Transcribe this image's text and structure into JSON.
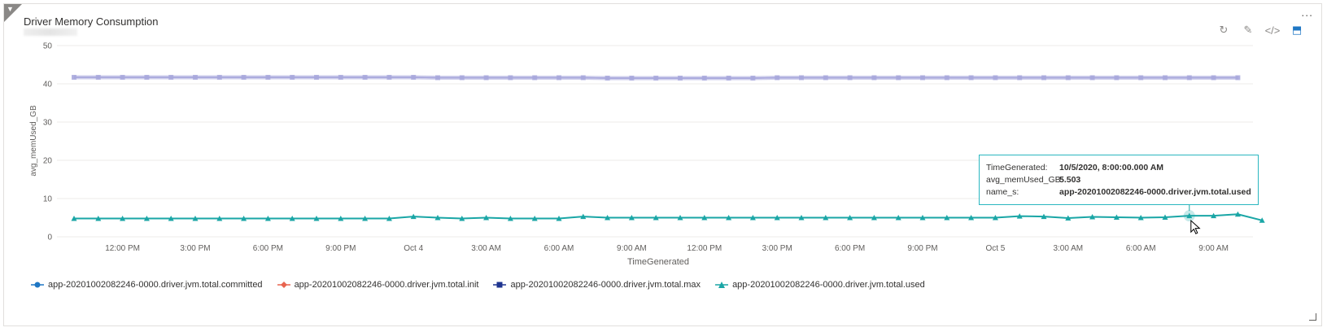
{
  "tile": {
    "title": "Driver Memory Consumption",
    "more_label": "...",
    "toolbar": [
      {
        "name": "refresh-icon",
        "glyph": "↻"
      },
      {
        "name": "edit-icon",
        "glyph": "✎"
      },
      {
        "name": "code-icon",
        "glyph": "</>"
      },
      {
        "name": "pin-icon",
        "glyph": "⬒"
      }
    ]
  },
  "colors": {
    "committed": "#1f77c4",
    "init": "#e8644f",
    "max": "#1f3590",
    "used": "#1aa6a6",
    "band": "#a8a7dc"
  },
  "chart_data": {
    "type": "line",
    "xlabel": "TimeGenerated",
    "ylabel": "avg_memUsed_GB",
    "ylim": [
      0,
      50
    ],
    "yticks": [
      0,
      10,
      20,
      30,
      40,
      50
    ],
    "xticks": [
      "12:00 PM",
      "3:00 PM",
      "6:00 PM",
      "9:00 PM",
      "Oct 4",
      "3:00 AM",
      "6:00 AM",
      "9:00 AM",
      "12:00 PM",
      "3:00 PM",
      "6:00 PM",
      "9:00 PM",
      "Oct 5",
      "3:00 AM",
      "6:00 AM",
      "9:00 AM"
    ],
    "x_start": "10/3/2020, 10:00:00.000 AM",
    "x_interval": "1 hour",
    "grid": true,
    "legend_position": "bottom-left",
    "series": [
      {
        "name": "app-20201002082246-0000.driver.jvm.total.committed",
        "key": "committed",
        "marker": "circle",
        "values": [
          41.7,
          41.7,
          41.7,
          41.7,
          41.7,
          41.7,
          41.7,
          41.7,
          41.7,
          41.7,
          41.7,
          41.7,
          41.7,
          41.7,
          41.7,
          41.6,
          41.6,
          41.6,
          41.6,
          41.6,
          41.6,
          41.6,
          41.5,
          41.5,
          41.5,
          41.5,
          41.5,
          41.5,
          41.5,
          41.6,
          41.6,
          41.6,
          41.6,
          41.6,
          41.6,
          41.6,
          41.6,
          41.6,
          41.6,
          41.6,
          41.6,
          41.6,
          41.6,
          41.6,
          41.6,
          41.6,
          41.6,
          41.6,
          41.6
        ]
      },
      {
        "name": "app-20201002082246-0000.driver.jvm.total.init",
        "key": "init",
        "marker": "diamond",
        "values": []
      },
      {
        "name": "app-20201002082246-0000.driver.jvm.total.max",
        "key": "max",
        "marker": "square",
        "values": [
          41.7,
          41.7,
          41.7,
          41.7,
          41.7,
          41.7,
          41.7,
          41.7,
          41.7,
          41.7,
          41.7,
          41.7,
          41.7,
          41.7,
          41.7,
          41.6,
          41.6,
          41.6,
          41.6,
          41.6,
          41.6,
          41.6,
          41.5,
          41.5,
          41.5,
          41.5,
          41.5,
          41.5,
          41.5,
          41.6,
          41.6,
          41.6,
          41.6,
          41.6,
          41.6,
          41.6,
          41.6,
          41.6,
          41.6,
          41.6,
          41.6,
          41.6,
          41.6,
          41.6,
          41.6,
          41.6,
          41.6,
          41.6,
          41.6
        ]
      },
      {
        "name": "app-20201002082246-0000.driver.jvm.total.used",
        "key": "used",
        "marker": "triangle",
        "values": [
          4.8,
          4.8,
          4.8,
          4.8,
          4.8,
          4.8,
          4.8,
          4.8,
          4.8,
          4.8,
          4.8,
          4.8,
          4.8,
          4.8,
          5.3,
          5.0,
          4.8,
          5.0,
          4.8,
          4.8,
          4.8,
          5.3,
          5.0,
          5.0,
          5.0,
          5.0,
          5.0,
          5.0,
          5.0,
          5.0,
          5.0,
          5.0,
          5.0,
          5.0,
          5.0,
          5.0,
          5.0,
          5.0,
          5.0,
          5.4,
          5.3,
          4.9,
          5.2,
          5.1,
          5.0,
          5.1,
          5.5,
          5.5,
          5.9,
          4.3
        ]
      }
    ]
  },
  "tooltip": {
    "rows": [
      {
        "key": "TimeGenerated:",
        "value": "10/5/2020, 8:00:00.000 AM"
      },
      {
        "key": "avg_memUsed_GB:",
        "value": "5.503"
      },
      {
        "key": "name_s:",
        "value": "app-20201002082246-0000.driver.jvm.total.used"
      }
    ],
    "point_index": 46
  }
}
